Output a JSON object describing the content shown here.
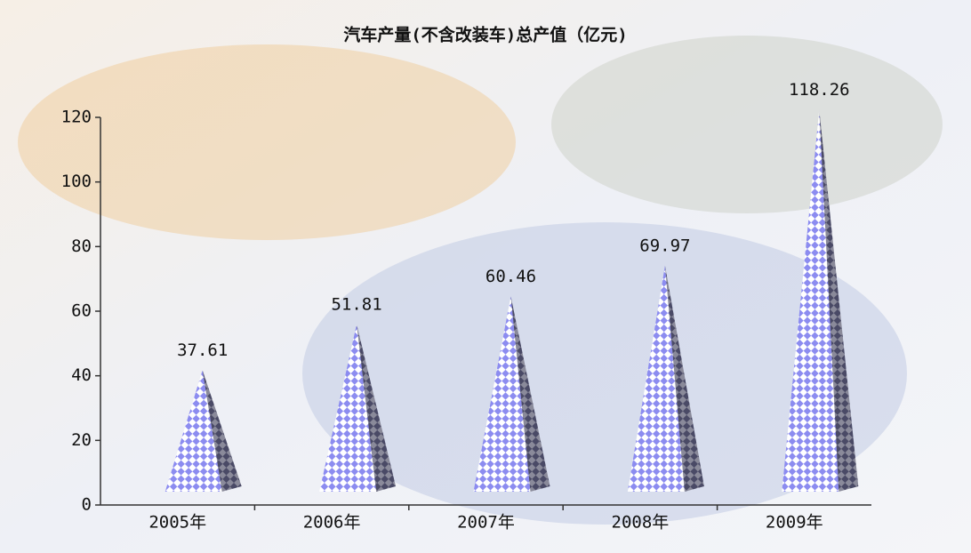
{
  "chart_data": {
    "type": "pyramid",
    "title": "汽车产量(不含改装车)总产值（亿元)",
    "categories": [
      "2005年",
      "2006年",
      "2007年",
      "2008年",
      "2009年"
    ],
    "values": [
      37.61,
      51.81,
      60.46,
      69.97,
      118.26
    ],
    "color": "#8c8cf0",
    "ylim": [
      0,
      120
    ],
    "yticks": [
      0,
      20,
      40,
      60,
      80,
      100,
      120
    ]
  }
}
